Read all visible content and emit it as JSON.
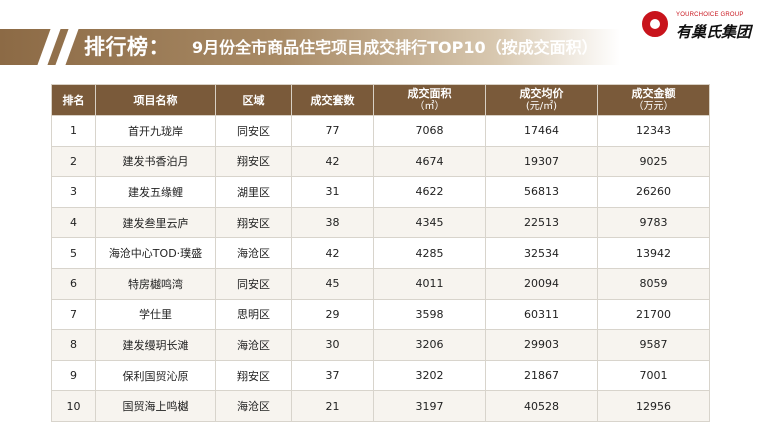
{
  "header": {
    "title": "排行榜：",
    "subtitle": "9月份全市商品住宅项目成交排行TOP10（按成交面积）"
  },
  "logo": {
    "en": "YOURCHOICE GROUP",
    "cn": "有巢氏集团"
  },
  "table": {
    "headers": {
      "rank": "排名",
      "name": "项目名称",
      "area": "区域",
      "sets": "成交套数",
      "sqm": "成交面积",
      "sqm_unit": "（㎡）",
      "price": "成交均价",
      "price_unit": "(元/㎡)",
      "amount": "成交金额",
      "amount_unit": "（万元）"
    },
    "rows": [
      {
        "rank": "1",
        "name": "首开九珑岸",
        "area": "同安区",
        "sets": "77",
        "sqm": "7068",
        "price": "17464",
        "amount": "12343"
      },
      {
        "rank": "2",
        "name": "建发书香泊月",
        "area": "翔安区",
        "sets": "42",
        "sqm": "4674",
        "price": "19307",
        "amount": "9025"
      },
      {
        "rank": "3",
        "name": "建发五缘鲤",
        "area": "湖里区",
        "sets": "31",
        "sqm": "4622",
        "price": "56813",
        "amount": "26260"
      },
      {
        "rank": "4",
        "name": "建发叁里云庐",
        "area": "翔安区",
        "sets": "38",
        "sqm": "4345",
        "price": "22513",
        "amount": "9783"
      },
      {
        "rank": "5",
        "name": "海沧中心TOD·璞盛",
        "area": "海沧区",
        "sets": "42",
        "sqm": "4285",
        "price": "32534",
        "amount": "13942"
      },
      {
        "rank": "6",
        "name": "特房樾鸣湾",
        "area": "同安区",
        "sets": "45",
        "sqm": "4011",
        "price": "20094",
        "amount": "8059"
      },
      {
        "rank": "7",
        "name": "学仕里",
        "area": "思明区",
        "sets": "29",
        "sqm": "3598",
        "price": "60311",
        "amount": "21700"
      },
      {
        "rank": "8",
        "name": "建发缦玥长滩",
        "area": "海沧区",
        "sets": "30",
        "sqm": "3206",
        "price": "29903",
        "amount": "9587"
      },
      {
        "rank": "9",
        "name": "保利国贸沁原",
        "area": "翔安区",
        "sets": "37",
        "sqm": "3202",
        "price": "21867",
        "amount": "7001"
      },
      {
        "rank": "10",
        "name": "国贸海上鸣樾",
        "area": "海沧区",
        "sets": "21",
        "sqm": "3197",
        "price": "40528",
        "amount": "12956"
      }
    ]
  },
  "colors": {
    "header_brown": "#7a5a3a",
    "accent_red": "#c8141c"
  }
}
